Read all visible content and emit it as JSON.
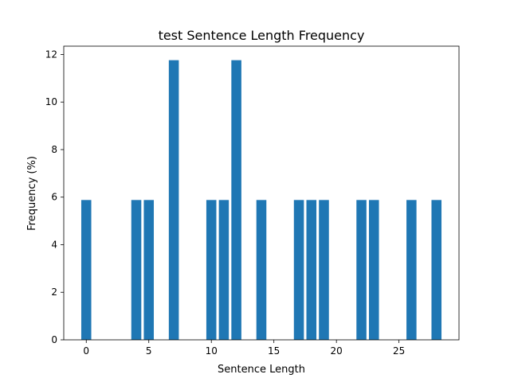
{
  "chart_data": {
    "type": "bar",
    "title": "test Sentence Length Frequency",
    "xlabel": "Sentence Length",
    "ylabel": "Frequency (%)",
    "x": [
      0,
      4,
      5,
      7,
      10,
      11,
      12,
      14,
      17,
      18,
      19,
      22,
      23,
      26,
      28
    ],
    "values": [
      5.88,
      5.88,
      5.88,
      11.76,
      5.88,
      5.88,
      11.76,
      5.88,
      5.88,
      5.88,
      5.88,
      5.88,
      5.88,
      5.88,
      5.88
    ],
    "xlim": [
      -1.8,
      29.8
    ],
    "ylim": [
      0,
      12.35
    ],
    "xticks": [
      0,
      5,
      10,
      15,
      20,
      25
    ],
    "yticks": [
      0,
      2,
      4,
      6,
      8,
      10,
      12
    ],
    "bar_color": "#1f77b4",
    "grid": false,
    "legend": "none"
  }
}
